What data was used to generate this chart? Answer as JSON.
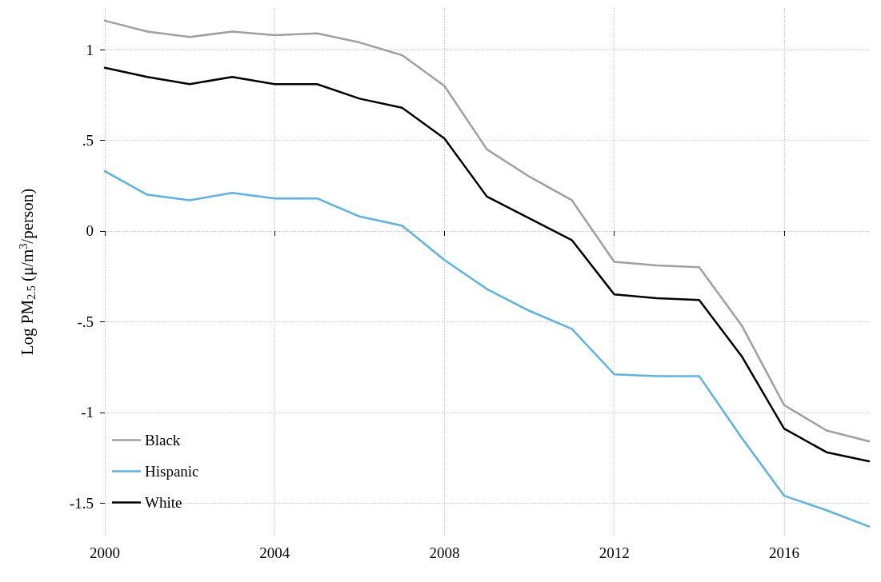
{
  "chart_data": {
    "type": "line",
    "ylabel": "Log PM$_{2.5}$ (μ/m$^{3}$/person)",
    "x": [
      2000,
      2001,
      2002,
      2003,
      2004,
      2005,
      2006,
      2007,
      2008,
      2009,
      2010,
      2011,
      2012,
      2013,
      2014,
      2015,
      2016,
      2017,
      2018
    ],
    "series": [
      {
        "name": "Black",
        "color": "#a0a0a0",
        "values": [
          1.16,
          1.1,
          1.07,
          1.1,
          1.08,
          1.09,
          1.04,
          0.97,
          0.8,
          0.45,
          0.3,
          0.17,
          -0.17,
          -0.19,
          -0.2,
          -0.52,
          -0.96,
          -1.1,
          -1.16
        ]
      },
      {
        "name": "Hispanic",
        "color": "#5ab4e5",
        "values": [
          0.33,
          0.2,
          0.17,
          0.21,
          0.18,
          0.18,
          0.08,
          0.03,
          -0.16,
          -0.32,
          -0.44,
          -0.54,
          -0.79,
          -0.8,
          -0.8,
          -1.14,
          -1.46,
          -1.54,
          -1.63
        ]
      },
      {
        "name": "White",
        "color": "#000000",
        "values": [
          0.9,
          0.85,
          0.81,
          0.85,
          0.81,
          0.81,
          0.73,
          0.68,
          0.51,
          0.19,
          0.07,
          -0.05,
          -0.35,
          -0.37,
          -0.38,
          -0.69,
          -1.09,
          -1.22,
          -1.27
        ]
      }
    ],
    "xlim": [
      2000,
      2018
    ],
    "xticks": [
      2000,
      2004,
      2008,
      2012,
      2016
    ],
    "ylim": [
      -1.68,
      1.23
    ],
    "yticks": [
      {
        "value": -1.5,
        "label": "-1.5"
      },
      {
        "value": -1,
        "label": "-1"
      },
      {
        "value": -0.5,
        "label": "-.5"
      },
      {
        "value": 0,
        "label": "0"
      },
      {
        "value": 0.5,
        "label": ".5"
      },
      {
        "value": 1,
        "label": "1"
      }
    ],
    "grid": true,
    "legend": "bottom left",
    "marker": "none",
    "line_style": "solid"
  }
}
